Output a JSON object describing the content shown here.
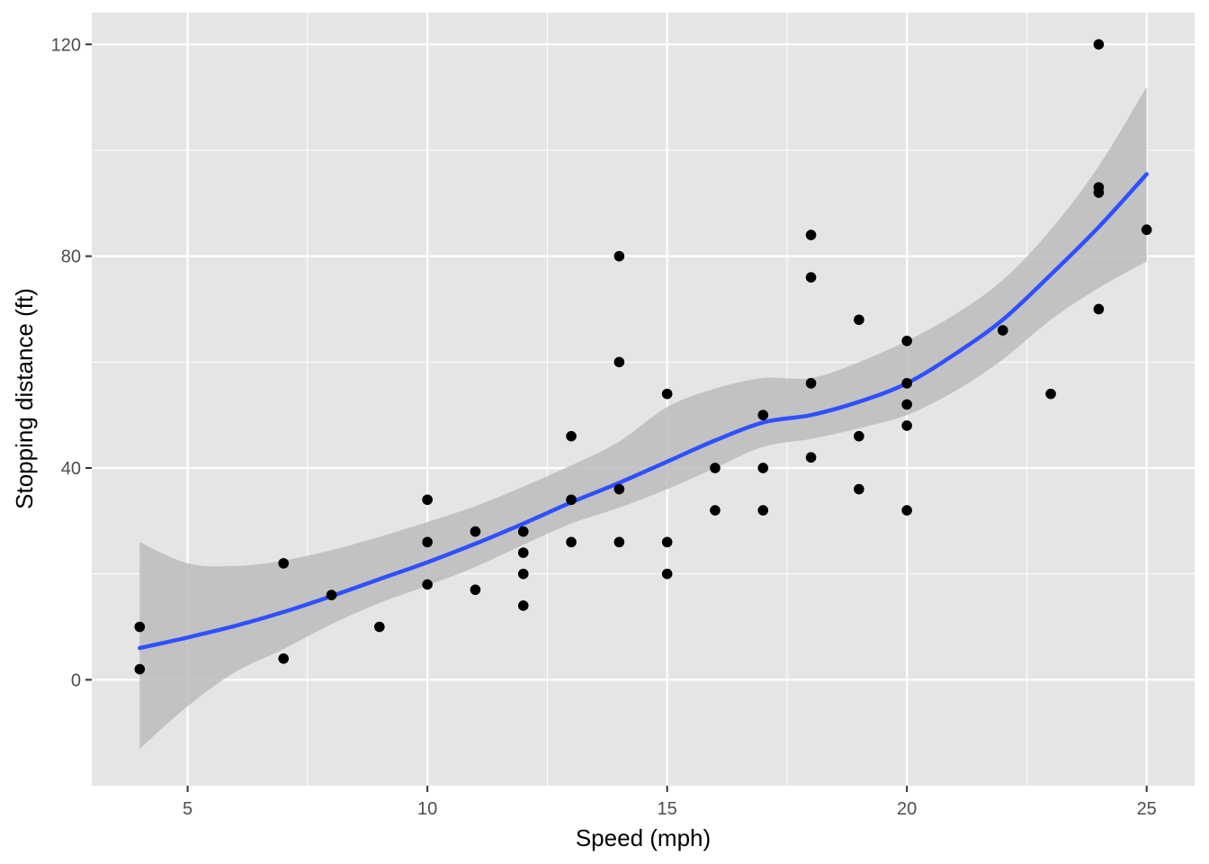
{
  "chart_data": {
    "type": "scatter",
    "xlabel": "Speed (mph)",
    "ylabel": "Stopping distance (ft)",
    "xlim": [
      3,
      26
    ],
    "ylim": [
      -20,
      126
    ],
    "x_ticks": [
      5,
      10,
      15,
      20,
      25
    ],
    "y_ticks": [
      0,
      40,
      80,
      120
    ],
    "grid": true,
    "legend": "none",
    "colors": {
      "panel": "#e5e5e5",
      "grid": "#ffffff",
      "points": "#000000",
      "smooth_line": "#3050ff",
      "ribbon": "#bcbcbc"
    },
    "points": [
      {
        "x": 4,
        "y": 2
      },
      {
        "x": 4,
        "y": 10
      },
      {
        "x": 7,
        "y": 4
      },
      {
        "x": 7,
        "y": 22
      },
      {
        "x": 8,
        "y": 16
      },
      {
        "x": 9,
        "y": 10
      },
      {
        "x": 10,
        "y": 18
      },
      {
        "x": 10,
        "y": 26
      },
      {
        "x": 10,
        "y": 34
      },
      {
        "x": 11,
        "y": 17
      },
      {
        "x": 11,
        "y": 28
      },
      {
        "x": 12,
        "y": 14
      },
      {
        "x": 12,
        "y": 20
      },
      {
        "x": 12,
        "y": 24
      },
      {
        "x": 12,
        "y": 28
      },
      {
        "x": 13,
        "y": 26
      },
      {
        "x": 13,
        "y": 34
      },
      {
        "x": 13,
        "y": 46
      },
      {
        "x": 14,
        "y": 26
      },
      {
        "x": 14,
        "y": 36
      },
      {
        "x": 14,
        "y": 60
      },
      {
        "x": 14,
        "y": 80
      },
      {
        "x": 15,
        "y": 20
      },
      {
        "x": 15,
        "y": 26
      },
      {
        "x": 15,
        "y": 54
      },
      {
        "x": 16,
        "y": 32
      },
      {
        "x": 16,
        "y": 40
      },
      {
        "x": 17,
        "y": 32
      },
      {
        "x": 17,
        "y": 40
      },
      {
        "x": 17,
        "y": 50
      },
      {
        "x": 18,
        "y": 42
      },
      {
        "x": 18,
        "y": 56
      },
      {
        "x": 18,
        "y": 76
      },
      {
        "x": 18,
        "y": 84
      },
      {
        "x": 19,
        "y": 36
      },
      {
        "x": 19,
        "y": 46
      },
      {
        "x": 19,
        "y": 68
      },
      {
        "x": 20,
        "y": 32
      },
      {
        "x": 20,
        "y": 48
      },
      {
        "x": 20,
        "y": 52
      },
      {
        "x": 20,
        "y": 56
      },
      {
        "x": 20,
        "y": 64
      },
      {
        "x": 22,
        "y": 66
      },
      {
        "x": 23,
        "y": 54
      },
      {
        "x": 24,
        "y": 70
      },
      {
        "x": 24,
        "y": 92
      },
      {
        "x": 24,
        "y": 93
      },
      {
        "x": 24,
        "y": 120
      },
      {
        "x": 25,
        "y": 85
      }
    ],
    "smooth": {
      "x": [
        4,
        5,
        6,
        7,
        8,
        9,
        10,
        11,
        12,
        13,
        14,
        15,
        16,
        17,
        18,
        19,
        20,
        21,
        22,
        23,
        24,
        25
      ],
      "y": [
        6,
        8,
        10.2,
        12.8,
        15.8,
        19,
        22.2,
        25.7,
        29.5,
        33.5,
        37.2,
        41.2,
        45.2,
        48.6,
        50,
        52.5,
        56,
        61.5,
        68,
        76.5,
        85.5,
        95.5
      ],
      "lower": [
        -13,
        -5,
        1.5,
        5.8,
        10.5,
        14.5,
        17.8,
        21.3,
        25.5,
        29.5,
        32.5,
        36,
        40,
        44,
        45.5,
        47.5,
        50,
        54.5,
        60.5,
        68,
        74,
        79
      ],
      "upper": [
        26,
        22,
        21.5,
        22.5,
        24.5,
        27,
        29.8,
        32.8,
        36.5,
        40.5,
        45,
        51.5,
        55,
        57,
        57,
        60,
        64,
        69,
        75.5,
        85,
        97,
        112
      ]
    }
  }
}
